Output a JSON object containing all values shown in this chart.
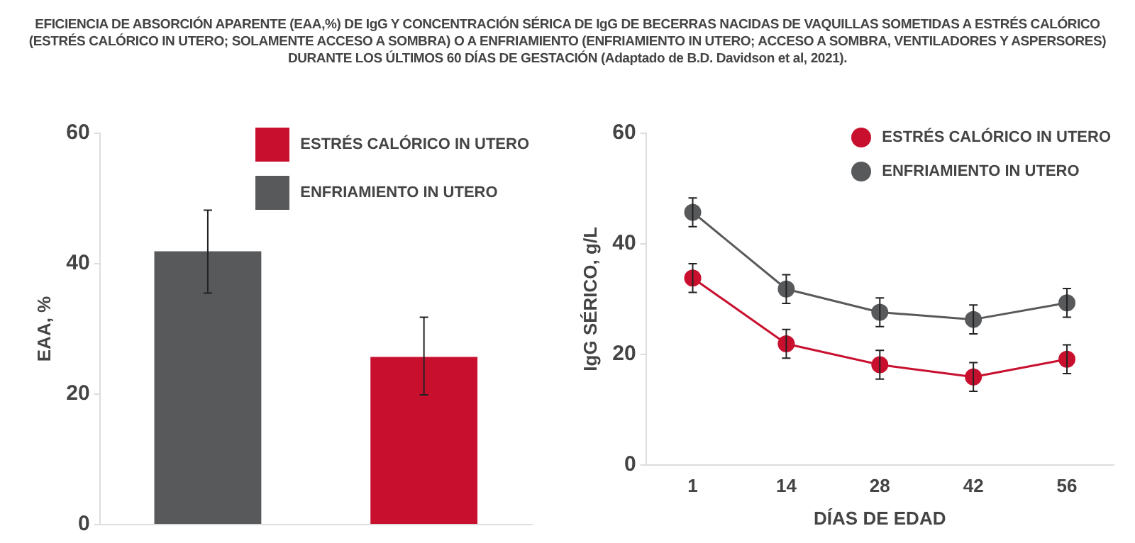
{
  "chart_data": [
    {
      "type": "bar",
      "title": "EFICIENCIA DE ABSORCIÓN APARENTE (EAA,%) DE IgG Y CONCENTRACIÓN SÉRICA DE IgG DE BECERRAS NACIDAS DE VAQUILLAS SOMETIDAS A ESTRÉS CALÓRICO (ESTRÉS CALÓRICO IN UTERO; SOLAMENTE ACCESO A SOMBRA) O A ENFRIAMIENTO (ENFRIAMIENTO IN UTERO; ACCESO A SOMBRA, VENTILADORES Y ASPERSORES) DURANTE LOS ÚLTIMOS 60 DÍAS DE GESTACIÓN (Adaptado de B.D. Davidson et al, 2021).",
      "ylabel": "EAA, %",
      "categories": [
        null,
        null
      ],
      "series": [
        {
          "name": "ESTRÉS CALÓRICO IN UTERO",
          "color": "#c8102e",
          "values": [
            null,
            25.7
          ],
          "errors": [
            null,
            [
              19.9,
              31.8
            ]
          ]
        },
        {
          "name": "ENFRIAMIENTO IN UTERO",
          "color": "#58595b",
          "values": [
            41.9,
            null
          ],
          "errors": [
            [
              35.5,
              48.2
            ],
            null
          ]
        }
      ],
      "ylim": [
        0,
        60
      ],
      "yticks": [
        0,
        20,
        40,
        60
      ],
      "grid": false,
      "legend": "top right",
      "tick_labels": "y"
    },
    {
      "type": "line",
      "xlabel": "DÍAS DE EDAD",
      "ylabel": "IgG SÉRICO, g/L",
      "categories": [
        "1",
        "14",
        "28",
        "42",
        "56"
      ],
      "series": [
        {
          "name": "ESTRÉS CALÓRICO IN UTERO",
          "color": "#c8102e",
          "values": [
            33.8,
            21.9,
            18.1,
            15.9,
            19.1
          ],
          "errors": [
            2.6,
            2.6,
            2.6,
            2.6,
            2.6
          ]
        },
        {
          "name": "ENFRIAMIENTO IN UTERO",
          "color": "#58595b",
          "values": [
            45.7,
            31.8,
            27.6,
            26.3,
            29.3
          ],
          "errors": [
            2.6,
            2.6,
            2.6,
            2.6,
            2.6
          ]
        }
      ],
      "ylim": [
        0,
        60
      ],
      "yticks": [
        0,
        20,
        40,
        60
      ],
      "grid": false,
      "legend": "top right",
      "marker": "circle",
      "line_style": "solid"
    }
  ]
}
